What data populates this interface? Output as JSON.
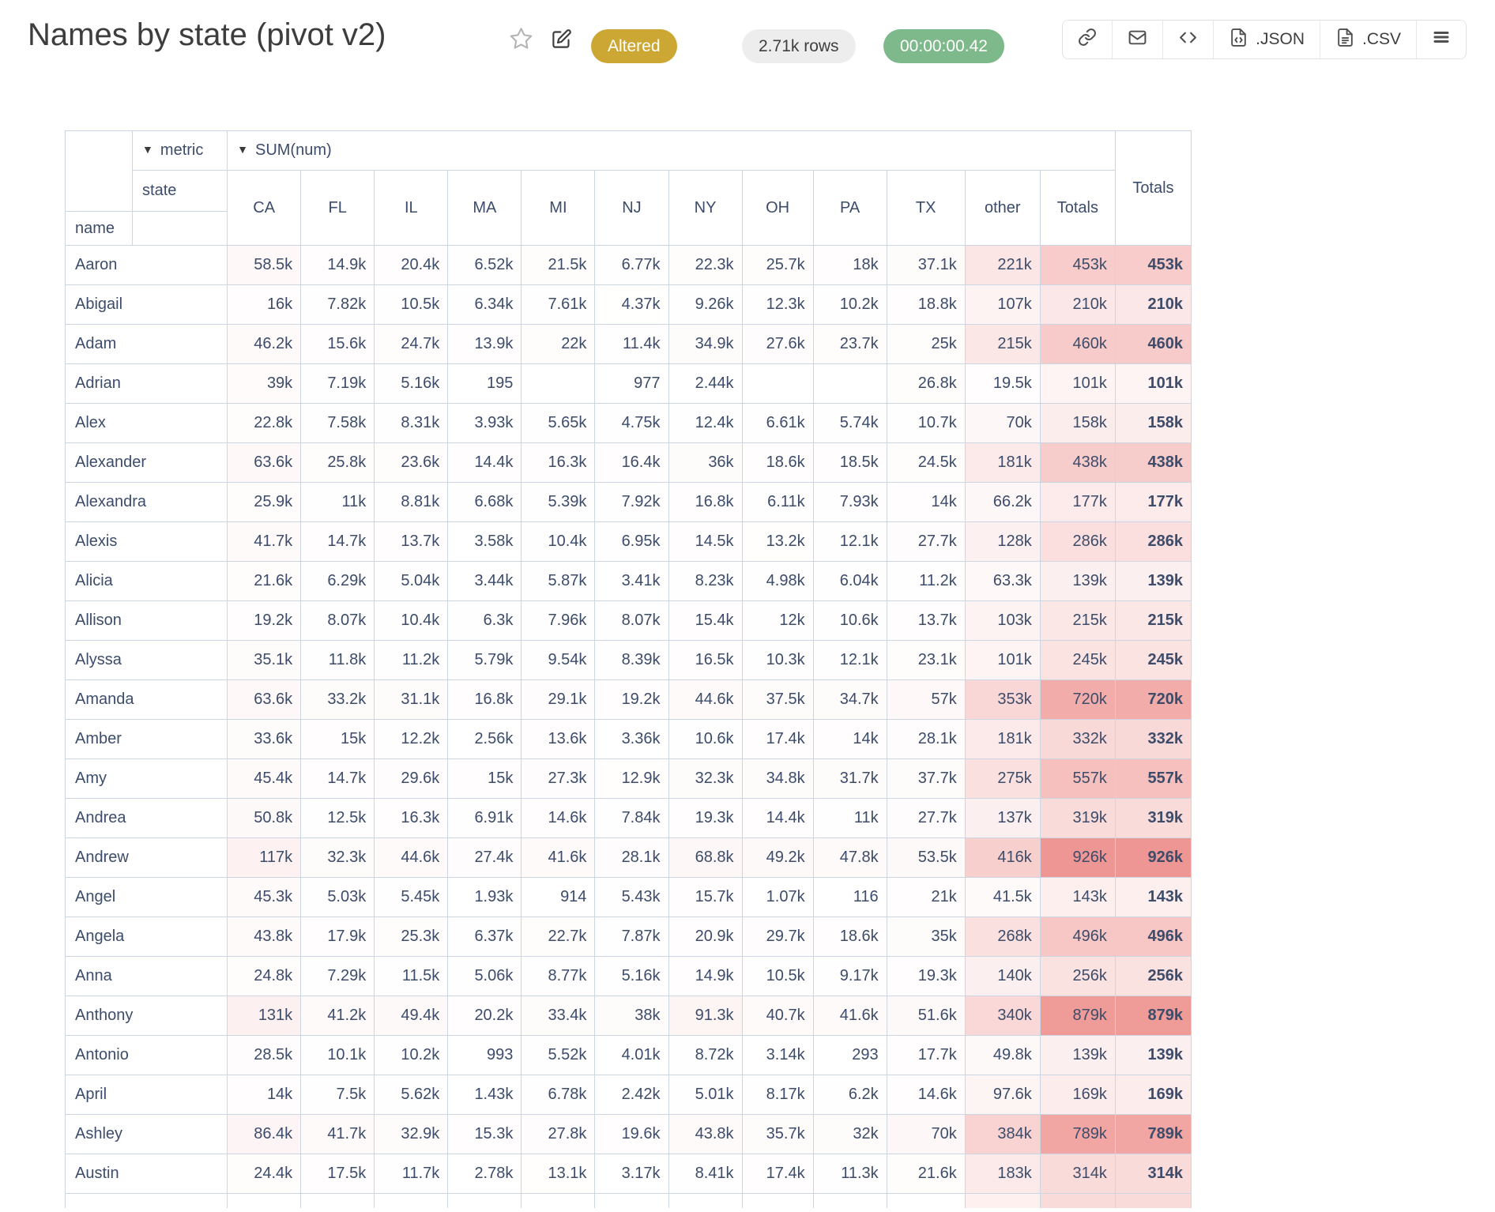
{
  "header": {
    "title": "Names by state (pivot v2)",
    "status_badge": "Altered",
    "rows_badge": "2.71k rows",
    "duration_badge": "00:00:00.42",
    "toolbar": {
      "json_label": ".JSON",
      "csv_label": ".CSV"
    }
  },
  "colors": {
    "altered_bg": "#cda733",
    "rows_bg": "#ededed",
    "timer_bg": "#7db98a",
    "heat_max": "#ee9693",
    "heat_min": "#ffffff",
    "cell_border": "#ccd6e2",
    "partial_other_tint": "#fdf0ee",
    "partial_totals_tint": "#f9dcda"
  },
  "pivot": {
    "metric_label": "metric",
    "sum_label": "SUM(num)",
    "row_dim": "name",
    "col_dim": "state",
    "totals_label": "Totals",
    "columns": [
      "CA",
      "FL",
      "IL",
      "MA",
      "MI",
      "NJ",
      "NY",
      "OH",
      "PA",
      "TX",
      "other",
      "Totals"
    ],
    "rows": [
      {
        "name": "Aaron",
        "values": [
          "58.5k",
          "14.9k",
          "20.4k",
          "6.52k",
          "21.5k",
          "6.77k",
          "22.3k",
          "25.7k",
          "18k",
          "37.1k",
          "221k",
          "453k"
        ],
        "total": "453k"
      },
      {
        "name": "Abigail",
        "values": [
          "16k",
          "7.82k",
          "10.5k",
          "6.34k",
          "7.61k",
          "4.37k",
          "9.26k",
          "12.3k",
          "10.2k",
          "18.8k",
          "107k",
          "210k"
        ],
        "total": "210k"
      },
      {
        "name": "Adam",
        "values": [
          "46.2k",
          "15.6k",
          "24.7k",
          "13.9k",
          "22k",
          "11.4k",
          "34.9k",
          "27.6k",
          "23.7k",
          "25k",
          "215k",
          "460k"
        ],
        "total": "460k"
      },
      {
        "name": "Adrian",
        "values": [
          "39k",
          "7.19k",
          "5.16k",
          "195",
          "",
          "977",
          "2.44k",
          "",
          "",
          "26.8k",
          "19.5k",
          "101k"
        ],
        "total": "101k"
      },
      {
        "name": "Alex",
        "values": [
          "22.8k",
          "7.58k",
          "8.31k",
          "3.93k",
          "5.65k",
          "4.75k",
          "12.4k",
          "6.61k",
          "5.74k",
          "10.7k",
          "70k",
          "158k"
        ],
        "total": "158k"
      },
      {
        "name": "Alexander",
        "values": [
          "63.6k",
          "25.8k",
          "23.6k",
          "14.4k",
          "16.3k",
          "16.4k",
          "36k",
          "18.6k",
          "18.5k",
          "24.5k",
          "181k",
          "438k"
        ],
        "total": "438k"
      },
      {
        "name": "Alexandra",
        "values": [
          "25.9k",
          "11k",
          "8.81k",
          "6.68k",
          "5.39k",
          "7.92k",
          "16.8k",
          "6.11k",
          "7.93k",
          "14k",
          "66.2k",
          "177k"
        ],
        "total": "177k"
      },
      {
        "name": "Alexis",
        "values": [
          "41.7k",
          "14.7k",
          "13.7k",
          "3.58k",
          "10.4k",
          "6.95k",
          "14.5k",
          "13.2k",
          "12.1k",
          "27.7k",
          "128k",
          "286k"
        ],
        "total": "286k"
      },
      {
        "name": "Alicia",
        "values": [
          "21.6k",
          "6.29k",
          "5.04k",
          "3.44k",
          "5.87k",
          "3.41k",
          "8.23k",
          "4.98k",
          "6.04k",
          "11.2k",
          "63.3k",
          "139k"
        ],
        "total": "139k"
      },
      {
        "name": "Allison",
        "values": [
          "19.2k",
          "8.07k",
          "10.4k",
          "6.3k",
          "7.96k",
          "8.07k",
          "15.4k",
          "12k",
          "10.6k",
          "13.7k",
          "103k",
          "215k"
        ],
        "total": "215k"
      },
      {
        "name": "Alyssa",
        "values": [
          "35.1k",
          "11.8k",
          "11.2k",
          "5.79k",
          "9.54k",
          "8.39k",
          "16.5k",
          "10.3k",
          "12.1k",
          "23.1k",
          "101k",
          "245k"
        ],
        "total": "245k"
      },
      {
        "name": "Amanda",
        "values": [
          "63.6k",
          "33.2k",
          "31.1k",
          "16.8k",
          "29.1k",
          "19.2k",
          "44.6k",
          "37.5k",
          "34.7k",
          "57k",
          "353k",
          "720k"
        ],
        "total": "720k"
      },
      {
        "name": "Amber",
        "values": [
          "33.6k",
          "15k",
          "12.2k",
          "2.56k",
          "13.6k",
          "3.36k",
          "10.6k",
          "17.4k",
          "14k",
          "28.1k",
          "181k",
          "332k"
        ],
        "total": "332k"
      },
      {
        "name": "Amy",
        "values": [
          "45.4k",
          "14.7k",
          "29.6k",
          "15k",
          "27.3k",
          "12.9k",
          "32.3k",
          "34.8k",
          "31.7k",
          "37.7k",
          "275k",
          "557k"
        ],
        "total": "557k"
      },
      {
        "name": "Andrea",
        "values": [
          "50.8k",
          "12.5k",
          "16.3k",
          "6.91k",
          "14.6k",
          "7.84k",
          "19.3k",
          "14.4k",
          "11k",
          "27.7k",
          "137k",
          "319k"
        ],
        "total": "319k"
      },
      {
        "name": "Andrew",
        "values": [
          "117k",
          "32.3k",
          "44.6k",
          "27.4k",
          "41.6k",
          "28.1k",
          "68.8k",
          "49.2k",
          "47.8k",
          "53.5k",
          "416k",
          "926k"
        ],
        "total": "926k"
      },
      {
        "name": "Angel",
        "values": [
          "45.3k",
          "5.03k",
          "5.45k",
          "1.93k",
          "914",
          "5.43k",
          "15.7k",
          "1.07k",
          "116",
          "21k",
          "41.5k",
          "143k"
        ],
        "total": "143k"
      },
      {
        "name": "Angela",
        "values": [
          "43.8k",
          "17.9k",
          "25.3k",
          "6.37k",
          "22.7k",
          "7.87k",
          "20.9k",
          "29.7k",
          "18.6k",
          "35k",
          "268k",
          "496k"
        ],
        "total": "496k"
      },
      {
        "name": "Anna",
        "values": [
          "24.8k",
          "7.29k",
          "11.5k",
          "5.06k",
          "8.77k",
          "5.16k",
          "14.9k",
          "10.5k",
          "9.17k",
          "19.3k",
          "140k",
          "256k"
        ],
        "total": "256k"
      },
      {
        "name": "Anthony",
        "values": [
          "131k",
          "41.2k",
          "49.4k",
          "20.2k",
          "33.4k",
          "38k",
          "91.3k",
          "40.7k",
          "41.6k",
          "51.6k",
          "340k",
          "879k"
        ],
        "total": "879k"
      },
      {
        "name": "Antonio",
        "values": [
          "28.5k",
          "10.1k",
          "10.2k",
          "993",
          "5.52k",
          "4.01k",
          "8.72k",
          "3.14k",
          "293",
          "17.7k",
          "49.8k",
          "139k"
        ],
        "total": "139k"
      },
      {
        "name": "April",
        "values": [
          "14k",
          "7.5k",
          "5.62k",
          "1.43k",
          "6.78k",
          "2.42k",
          "5.01k",
          "8.17k",
          "6.2k",
          "14.6k",
          "97.6k",
          "169k"
        ],
        "total": "169k"
      },
      {
        "name": "Ashley",
        "values": [
          "86.4k",
          "41.7k",
          "32.9k",
          "15.3k",
          "27.8k",
          "19.6k",
          "43.8k",
          "35.7k",
          "32k",
          "70k",
          "384k",
          "789k"
        ],
        "total": "789k"
      },
      {
        "name": "Austin",
        "values": [
          "24.4k",
          "17.5k",
          "11.7k",
          "2.78k",
          "13.1k",
          "3.17k",
          "8.41k",
          "17.4k",
          "11.3k",
          "21.6k",
          "183k",
          "314k"
        ],
        "total": "314k"
      }
    ]
  }
}
